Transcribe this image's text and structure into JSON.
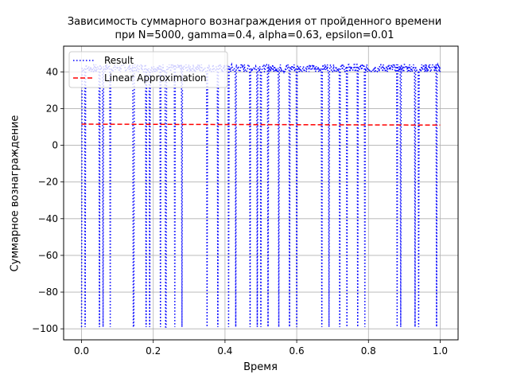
{
  "chart_data": {
    "type": "line",
    "title": "Зависимость суммарного вознаграждения от пройденного времени",
    "subtitle": "при N=5000, gamma=0.4, alpha=0.63, epsilon=0.01",
    "xlabel": "Время",
    "ylabel": "Суммарное вознаграждение",
    "xlim": [
      -0.05,
      1.05
    ],
    "ylim": [
      -106,
      54
    ],
    "xticks": [
      0.0,
      0.2,
      0.4,
      0.6,
      0.8,
      1.0
    ],
    "xtick_labels": [
      "0.0",
      "0.2",
      "0.4",
      "0.6",
      "0.8",
      "1.0"
    ],
    "yticks": [
      -100,
      -80,
      -60,
      -40,
      -20,
      0,
      20,
      40
    ],
    "ytick_labels": [
      "−100",
      "−80",
      "−60",
      "−40",
      "−20",
      "0",
      "20",
      "40"
    ],
    "grid": true,
    "legend_position": "top-left",
    "series": [
      {
        "name": "Result",
        "color": "#0000ff",
        "style": "dotted",
        "baseline_y": [
          40,
          41,
          42,
          43,
          44
        ],
        "drops_to_y": -99,
        "drop_x": [
          0.0,
          0.01,
          0.05,
          0.06,
          0.08,
          0.145,
          0.18,
          0.19,
          0.22,
          0.235,
          0.26,
          0.28,
          0.35,
          0.38,
          0.41,
          0.43,
          0.47,
          0.49,
          0.5,
          0.52,
          0.55,
          0.58,
          0.6,
          0.67,
          0.69,
          0.72,
          0.74,
          0.77,
          0.79,
          0.88,
          0.89,
          0.93,
          0.94,
          0.99
        ]
      },
      {
        "name": "Linear Approximation",
        "color": "#ff0000",
        "style": "dashed",
        "x": [
          0.0,
          1.0
        ],
        "y": [
          11.5,
          11.0
        ]
      }
    ]
  }
}
